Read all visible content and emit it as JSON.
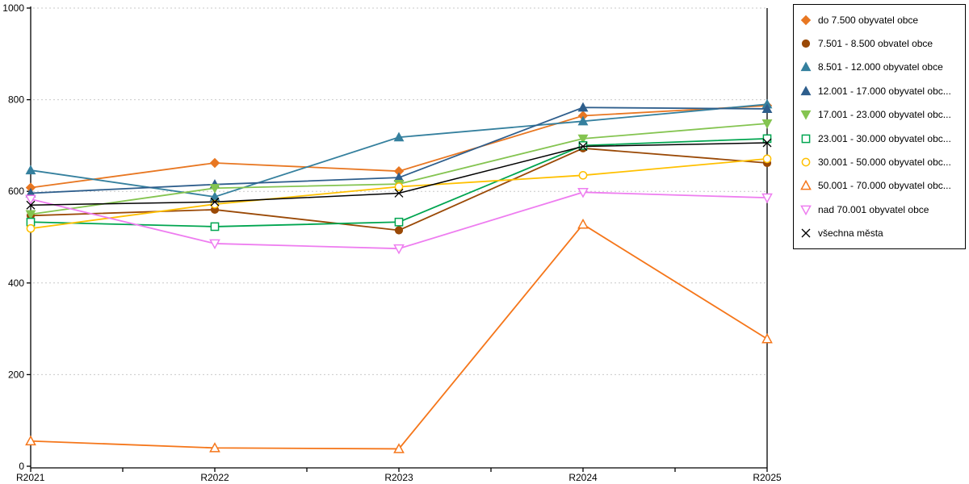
{
  "chart_data": {
    "type": "line",
    "title": "",
    "xlabel": "",
    "ylabel": "",
    "categories": [
      "R2021",
      "R2022",
      "R2023",
      "R2024",
      "R2025"
    ],
    "y_axis": {
      "min": 0,
      "max": 1000,
      "tick_step": 200,
      "tick_labels": [
        "0",
        "200",
        "400",
        "600",
        "800",
        "1000"
      ]
    },
    "grid": {
      "show": true,
      "color": "#c9c9c9",
      "style": "dashed"
    },
    "axis_color": "#000000",
    "legend": {
      "position": "top-right",
      "border_color": "#000000",
      "background": "#ffffff"
    },
    "series": [
      {
        "name": "do 7.500 obyvatel obce",
        "marker": "diamond",
        "fill": "solid",
        "color": "#E87722",
        "values": [
          608,
          662,
          644,
          765,
          787
        ]
      },
      {
        "name": "7.501 - 8.500 obvatel obce",
        "marker": "circle",
        "fill": "solid",
        "color": "#9A4906",
        "values": [
          547,
          560,
          515,
          694,
          662
        ]
      },
      {
        "name": "8.501 - 12.000 obyvatel obce",
        "marker": "triangle-up",
        "fill": "solid",
        "color": "#35809E",
        "values": [
          646,
          588,
          718,
          753,
          790
        ]
      },
      {
        "name": "12.001 - 17.000 obyvatel obc...",
        "marker": "triangle-up",
        "fill": "solid",
        "color": "#2E5E8C",
        "values": [
          596,
          615,
          630,
          783,
          780
        ]
      },
      {
        "name": "17.001 - 23.000 obyvatel obc...",
        "marker": "triangle-down",
        "fill": "solid",
        "color": "#84C450",
        "values": [
          550,
          607,
          616,
          715,
          748
        ]
      },
      {
        "name": "23.001 - 30.000 obyvatel obc...",
        "marker": "square",
        "fill": "open",
        "color": "#00A550",
        "values": [
          533,
          523,
          533,
          700,
          715
        ]
      },
      {
        "name": "30.001 - 50.000 obyvatel obc...",
        "marker": "circle",
        "fill": "open",
        "color": "#FFC000",
        "values": [
          519,
          572,
          610,
          635,
          671
        ]
      },
      {
        "name": "50.001 - 70.000 obyvatel obc...",
        "marker": "triangle-up",
        "fill": "open",
        "color": "#F5761A",
        "values": [
          55,
          40,
          38,
          528,
          278
        ]
      },
      {
        "name": "nad 70.001 obyvatel obce",
        "marker": "triangle-down",
        "fill": "open",
        "color": "#EE7DF0",
        "values": [
          583,
          486,
          475,
          598,
          586
        ]
      },
      {
        "name": "všechna města",
        "marker": "x",
        "fill": "solid",
        "color": "#000000",
        "values": [
          570,
          577,
          596,
          698,
          706
        ]
      }
    ]
  }
}
